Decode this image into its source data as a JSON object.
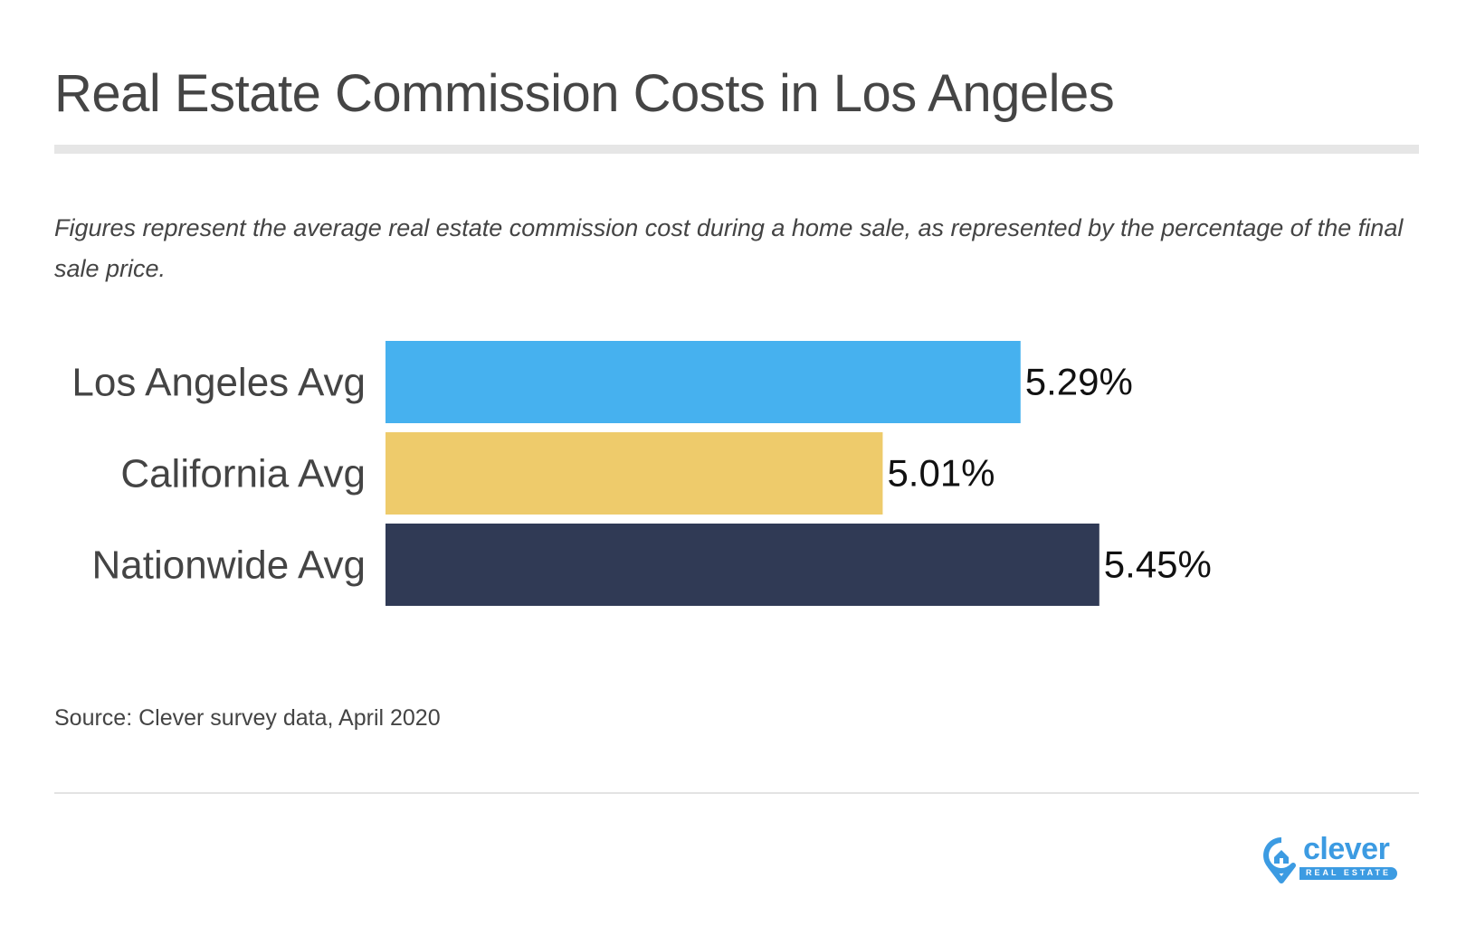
{
  "title": "Real Estate Commission Costs in Los Angeles",
  "subtitle": "Figures represent the average real estate commission cost during a home sale, as represented by the percentage of the final sale price.",
  "source": "Source: Clever survey data, April 2020",
  "logo": {
    "name": "clever",
    "tagline": "REAL ESTATE",
    "icon": "location-pin-house-icon",
    "color": "#3c9be2"
  },
  "chart_data": {
    "type": "bar",
    "orientation": "horizontal",
    "title": "Real Estate Commission Costs in Los Angeles",
    "xlabel": "",
    "ylabel": "",
    "categories": [
      "Los Angeles Avg",
      "California Avg",
      "Nationwide Avg"
    ],
    "values": [
      5.29,
      5.01,
      5.45
    ],
    "value_labels": [
      "5.29%",
      "5.01%",
      "5.45%"
    ],
    "colors": [
      "#46b1ef",
      "#eecb6b",
      "#303a55"
    ],
    "unit": "%",
    "xlim": [
      4.0,
      5.8
    ],
    "grid": false,
    "legend": "none"
  }
}
